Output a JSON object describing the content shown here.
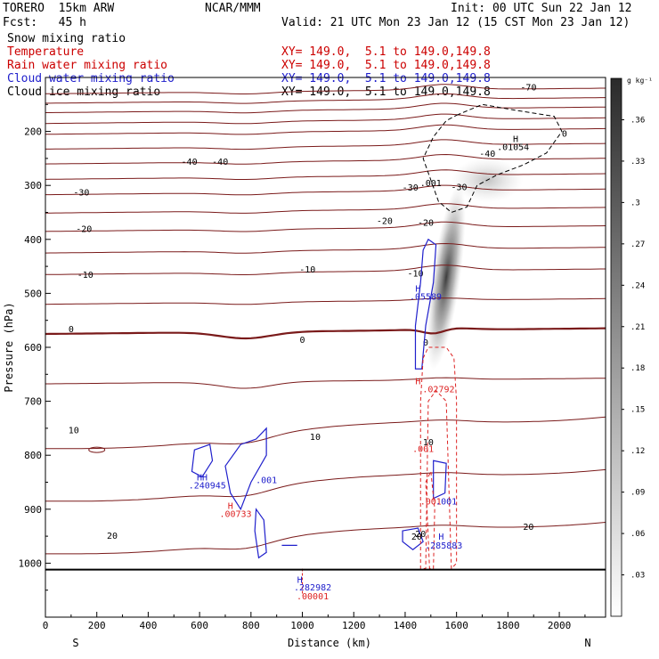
{
  "header": {
    "model": "TORERO  15km ARW",
    "org": "NCAR/MMM",
    "init": "Init: 00 UTC Sun 22 Jan 12",
    "fcst": "Fcst:   45 h",
    "valid": "Valid: 21 UTC Mon 23 Jan 12 (15 CST Mon 23 Jan 12)"
  },
  "fields": [
    {
      "name": "Snow mixing ratio",
      "color": "#000000",
      "xy": ""
    },
    {
      "name": "Temperature",
      "color": "#cc0000",
      "xy": "XY= 149.0,  5.1 to 149.0,149.8"
    },
    {
      "name": "Rain water mixing ratio",
      "color": "#cc0000",
      "xy": "XY= 149.0,  5.1 to 149.0,149.8"
    },
    {
      "name": "Cloud water mixing ratio",
      "color": "#2020cc",
      "xy": "XY= 149.0,  5.1 to 149.0,149.8"
    },
    {
      "name": "Cloud ice mixing ratio",
      "color": "#000000",
      "xy": "XY= 149.0,  5.1 to 149.0,149.8"
    }
  ],
  "colors": {
    "temperature": "#7a1a1a",
    "rain": "#dd2222",
    "cloud_water": "#2020cc",
    "cloud_ice": "#000000",
    "snow": "#000000"
  },
  "chart_data": {
    "type": "contour",
    "xlabel": "Distance (km)",
    "ylabel": "Pressure (hPa)",
    "x_end_labels": {
      "left": "S",
      "right": "N"
    },
    "xlim": [
      0,
      2180
    ],
    "ylim": [
      1100,
      100
    ],
    "yscale": "linear",
    "x_ticks": [
      0,
      200,
      400,
      600,
      800,
      1000,
      1200,
      1400,
      1600,
      1800,
      2000
    ],
    "y_ticks": [
      200,
      300,
      400,
      500,
      600,
      700,
      800,
      900,
      1000
    ],
    "surface_pressure": 1012,
    "temperature_isotherms": [
      {
        "value": -70,
        "p": 125
      },
      {
        "value": -60,
        "p": 160
      },
      {
        "value": -50,
        "p": 200
      },
      {
        "value": -40,
        "p": 255
      },
      {
        "value": -30,
        "p": 312
      },
      {
        "value": -20,
        "p": 380
      },
      {
        "value": -10,
        "p": 460
      },
      {
        "value": 0,
        "p": 570
      },
      {
        "value": 10,
        "p": 755
      },
      {
        "value": 20,
        "p": 950
      }
    ],
    "isotherm_labels": [
      {
        "text": "-70",
        "x": 1880,
        "p": 117
      },
      {
        "text": "-40",
        "x": 560,
        "p": 255
      },
      {
        "text": "-40",
        "x": 680,
        "p": 255
      },
      {
        "text": "-40",
        "x": 1720,
        "p": 240
      },
      {
        "text": "-30",
        "x": 140,
        "p": 312
      },
      {
        "text": "-30",
        "x": 1420,
        "p": 303
      },
      {
        "text": "-30",
        "x": 1610,
        "p": 302
      },
      {
        "text": "-20",
        "x": 150,
        "p": 380
      },
      {
        "text": "-20",
        "x": 1320,
        "p": 365
      },
      {
        "text": "-20",
        "x": 1480,
        "p": 368
      },
      {
        "text": "-10",
        "x": 155,
        "p": 465
      },
      {
        "text": "-10",
        "x": 1020,
        "p": 455
      },
      {
        "text": "-10",
        "x": 1440,
        "p": 462
      },
      {
        "text": "0",
        "x": 100,
        "p": 565
      },
      {
        "text": "0",
        "x": 1000,
        "p": 585
      },
      {
        "text": "0",
        "x": 1480,
        "p": 590
      },
      {
        "text": "10",
        "x": 110,
        "p": 753
      },
      {
        "text": "10",
        "x": 1050,
        "p": 765
      },
      {
        "text": "10",
        "x": 1490,
        "p": 775
      },
      {
        "text": "20",
        "x": 260,
        "p": 948
      },
      {
        "text": "20",
        "x": 1880,
        "p": 932
      },
      {
        "text": "20",
        "x": 1460,
        "p": 945
      }
    ],
    "annotations": [
      {
        "text": "H",
        "x": 1830,
        "p": 213,
        "color": "#000000"
      },
      {
        "text": ".01054",
        "x": 1820,
        "p": 228,
        "color": "#000000"
      },
      {
        "text": ".001",
        "x": 1500,
        "p": 295,
        "color": "#000000"
      },
      {
        "text": "0",
        "x": 2020,
        "p": 203,
        "color": "#000000"
      },
      {
        "text": "H",
        "x": 1450,
        "p": 490,
        "color": "#2020cc"
      },
      {
        "text": ".05589",
        "x": 1480,
        "p": 505,
        "color": "#2020cc"
      },
      {
        "text": "H",
        "x": 1450,
        "p": 662,
        "color": "#dd2222"
      },
      {
        "text": ".02792",
        "x": 1530,
        "p": 677,
        "color": "#dd2222"
      },
      {
        "text": ".001",
        "x": 1470,
        "p": 787,
        "color": "#dd2222"
      },
      {
        "text": "HH",
        "x": 610,
        "p": 840,
        "color": "#2020cc"
      },
      {
        "text": ".240945",
        "x": 630,
        "p": 855,
        "color": "#2020cc"
      },
      {
        "text": ".001",
        "x": 860,
        "p": 845,
        "color": "#2020cc"
      },
      {
        "text": "H",
        "x": 720,
        "p": 893,
        "color": "#dd2222"
      },
      {
        "text": ".00733",
        "x": 740,
        "p": 908,
        "color": "#dd2222"
      },
      {
        "text": ".001",
        "x": 1500,
        "p": 885,
        "color": "#dd2222"
      },
      {
        "text": ".001",
        "x": 1560,
        "p": 885,
        "color": "#2020cc"
      },
      {
        "text": "20",
        "x": 1445,
        "p": 950,
        "color": "#000000"
      },
      {
        "text": "H",
        "x": 1540,
        "p": 950,
        "color": "#2020cc"
      },
      {
        "text": ".285883",
        "x": 1550,
        "p": 966,
        "color": "#2020cc"
      },
      {
        "text": "H",
        "x": 990,
        "p": 1030,
        "color": "#2020cc"
      },
      {
        "text": ".282982",
        "x": 1040,
        "p": 1044,
        "color": "#2020cc"
      },
      {
        "text": ".00001",
        "x": 1040,
        "p": 1060,
        "color": "#dd2222"
      }
    ],
    "colorbar": {
      "unit": "g kg⁻¹",
      "ticks": [
        0.36,
        0.33,
        0.3,
        0.27,
        0.24,
        0.21,
        0.18,
        0.15,
        0.12,
        0.09,
        0.06,
        0.03
      ],
      "tick_labels": [
        ".36",
        ".33",
        ".3",
        ".27",
        ".24",
        ".21",
        ".18",
        ".15",
        ".12",
        ".09",
        ".06",
        ".03"
      ],
      "range": [
        0,
        0.39
      ]
    }
  }
}
